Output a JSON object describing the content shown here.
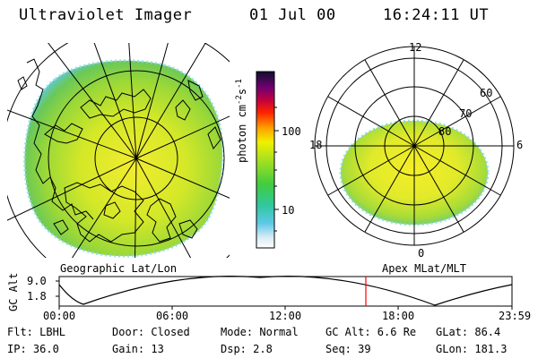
{
  "header": {
    "title": "Ultraviolet Imager",
    "date": "01 Jul 00",
    "time": "16:24:11 UT"
  },
  "colorbar": {
    "unit_label": "photon cm-2s-1",
    "ticks": [
      "100",
      "10"
    ]
  },
  "polar": {
    "mlt_labels": [
      "12",
      "18",
      "6",
      "0"
    ],
    "lat_labels": [
      "60",
      "70",
      "80"
    ]
  },
  "panels": {
    "left_caption": "Geographic Lat/Lon",
    "right_caption": "Apex MLat/MLT"
  },
  "orbit": {
    "ylabel": "GC Alt",
    "yticks": [
      "9.0",
      "1.8"
    ],
    "xticks": [
      "00:00",
      "06:00",
      "12:00",
      "18:00",
      "23:59"
    ],
    "marker_color": "#ff0000"
  },
  "info": {
    "flt": "Flt: LBHL",
    "door": "Door: Closed",
    "mode": "Mode: Normal",
    "gc_alt": "GC Alt: 6.6 Re",
    "glat": "GLat: 86.4",
    "ip": "IP: 36.0",
    "gain": "Gain: 13",
    "dsp": "Dsp:    2.8",
    "seq": "Seq: 39",
    "glon": "GLon: 181.3"
  }
}
